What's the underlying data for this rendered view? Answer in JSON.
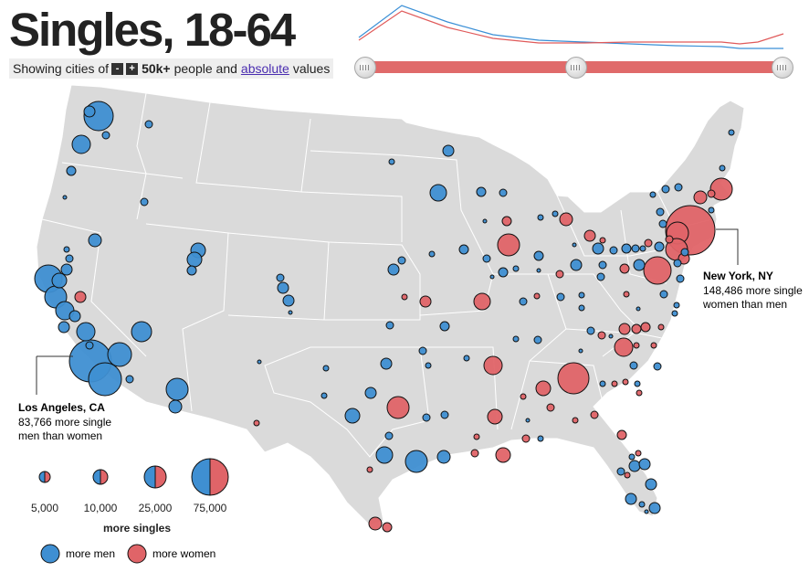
{
  "title": "Singles, 18-64",
  "controls": {
    "prefix": "Showing cities of",
    "minus": "-",
    "plus": "+",
    "threshold": "50k+",
    "middle": "people and",
    "link": "absolute",
    "suffix": "values"
  },
  "sparkline": {
    "blue_color": "#3a8fd6",
    "red_color": "#e05a5a"
  },
  "slider": {
    "handles": 3
  },
  "colors": {
    "men": "#3f8fd2",
    "women": "#e06468",
    "land": "#dadada",
    "border": "#ffffff"
  },
  "annotations": {
    "la": {
      "city": "Los Angeles, CA",
      "line1": "83,766 more single",
      "line2": "men than women"
    },
    "ny": {
      "city": "New York, NY",
      "line1": "148,486 more single",
      "line2": "women than men"
    }
  },
  "legend": {
    "sizes": [
      "5,000",
      "10,000",
      "25,000",
      "75,000"
    ],
    "size_title": "more singles",
    "men_label": "more men",
    "women_label": "more women"
  }
}
